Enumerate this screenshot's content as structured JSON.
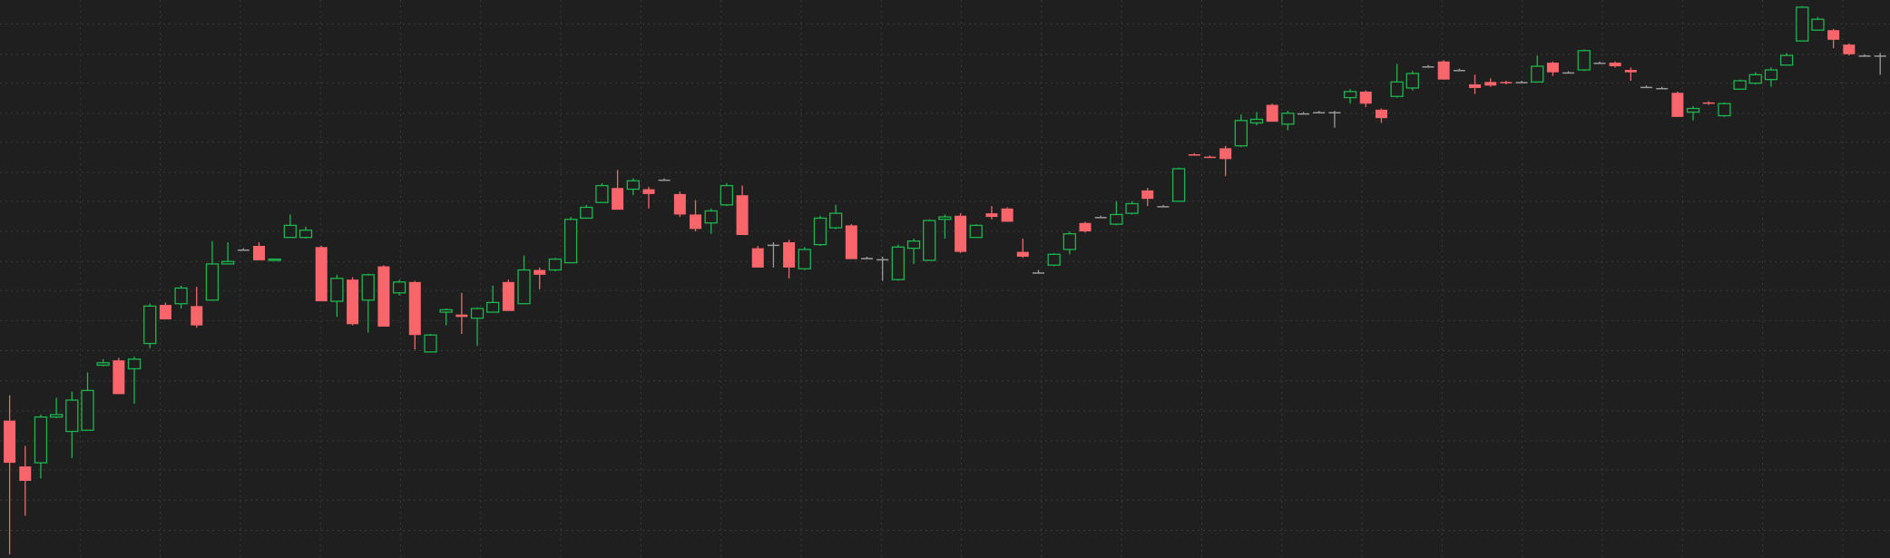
{
  "chart_data": {
    "type": "candlestick",
    "open": [
      114,
      76,
      79,
      117,
      105,
      106,
      160,
      164,
      157,
      178,
      210,
      211,
      209,
      214,
      244,
      256,
      259,
      247,
      266,
      266,
      258,
      213,
      231,
      214,
      242,
      220,
      229,
      171,
      204,
      202,
      199,
      204,
      229,
      211,
      239,
      239,
      245,
      282,
      295,
      307,
      306,
      306,
      314,
      302,
      285,
      278,
      293,
      301,
      257,
      260,
      262,
      240,
      260,
      274,
      276,
      249,
      248,
      231,
      257,
      247,
      281,
      284,
      266,
      286,
      290,
      254,
      237,
      243,
      256,
      278,
      283,
      277,
      286,
      305,
      292,
      296,
      335,
      333,
      340,
      342,
      361,
      376,
      360,
      369,
      370,
      370,
      382,
      387,
      372,
      383,
      390,
      408,
      412,
      405,
      393,
      395,
      395,
      395,
      395,
      411,
      403,
      405,
      411,
      411,
      405,
      391,
      390,
      386,
      370,
      378,
      367,
      389,
      394,
      397,
      409,
      429,
      438,
      438,
      426,
      417,
      417
    ],
    "high": [
      135,
      93,
      119,
      133,
      138,
      154,
      165,
      166,
      167,
      211,
      212,
      226,
      225,
      263,
      262,
      257,
      262,
      248,
      285,
      275,
      259,
      235,
      233,
      236,
      243,
      231,
      230,
      186,
      207,
      220,
      208,
      226,
      231,
      251,
      241,
      249,
      283,
      293,
      311,
      322,
      315,
      308,
      315,
      304,
      297,
      290,
      311,
      309,
      259,
      262,
      264,
      258,
      284,
      293,
      277,
      250,
      250,
      260,
      265,
      281,
      285,
      286,
      277,
      292,
      291,
      265,
      239,
      253,
      271,
      279,
      284,
      296,
      296,
      307,
      293,
      324,
      336,
      334,
      342,
      368,
      370,
      377,
      371,
      370,
      371,
      371,
      389,
      388,
      373,
      410,
      404,
      409,
      413,
      406,
      401,
      398,
      396,
      396,
      417,
      412,
      404,
      422,
      412,
      412,
      407,
      392,
      391,
      387,
      375,
      379,
      378,
      397,
      403,
      407,
      419,
      458,
      449,
      439,
      427,
      418,
      419
    ],
    "low": [
      3,
      35,
      66,
      116,
      83,
      106,
      159,
      136,
      128,
      174,
      198,
      207,
      191,
      214,
      244,
      255,
      247,
      247,
      266,
      265,
      213,
      200,
      193,
      187,
      192,
      218,
      173,
      171,
      193,
      186,
      176,
      204,
      205,
      211,
      223,
      238,
      245,
      282,
      295,
      289,
      301,
      290,
      313,
      283,
      271,
      269,
      292,
      268,
      241,
      241,
      232,
      239,
      259,
      273,
      248,
      248,
      230,
      230,
      244,
      247,
      265,
      253,
      266,
      281,
      279,
      249,
      236,
      242,
      252,
      270,
      282,
      276,
      285,
      292,
      291,
      296,
      334,
      332,
      317,
      341,
      359,
      362,
      355,
      368,
      369,
      357,
      377,
      374,
      361,
      382,
      388,
      407,
      397,
      404,
      385,
      391,
      393,
      394,
      395,
      400,
      402,
      404,
      410,
      407,
      396,
      390,
      389,
      366,
      363,
      376,
      366,
      389,
      393,
      391,
      409,
      429,
      438,
      423,
      417,
      416,
      401
    ],
    "close": [
      79,
      64,
      117,
      119,
      131,
      139,
      162,
      136,
      165,
      209,
      198,
      224,
      193,
      244,
      246,
      256,
      247,
      248,
      276,
      272,
      213,
      232,
      194,
      235,
      192,
      229,
      185,
      185,
      206,
      200,
      207,
      212,
      205,
      239,
      235,
      248,
      281,
      291,
      309,
      289,
      313,
      302,
      314,
      285,
      273,
      288,
      309,
      268,
      241,
      260,
      241,
      256,
      282,
      286,
      248,
      249,
      248,
      258,
      263,
      280,
      283,
      254,
      276,
      283,
      279,
      250,
      237,
      252,
      269,
      271,
      283,
      285,
      294,
      298,
      292,
      323,
      334,
      332,
      331,
      363,
      364,
      362,
      369,
      369,
      370,
      370,
      387,
      377,
      365,
      395,
      402,
      408,
      397,
      405,
      390,
      392,
      394,
      395,
      408,
      403,
      403,
      421,
      411,
      408,
      403,
      391,
      390,
      366,
      373,
      377,
      377,
      396,
      401,
      405,
      417,
      457,
      447,
      430,
      418,
      417,
      417
    ],
    "ylim": [
      0,
      463
    ],
    "yticks": [
      23,
      48,
      73,
      97,
      122,
      147,
      172,
      197,
      222,
      246,
      271,
      296,
      320,
      345,
      369,
      394,
      418,
      443
    ],
    "grid": true,
    "colors": {
      "up": "#1fb54f",
      "down": "#f8656b",
      "flat": "#9a9a9a"
    }
  }
}
